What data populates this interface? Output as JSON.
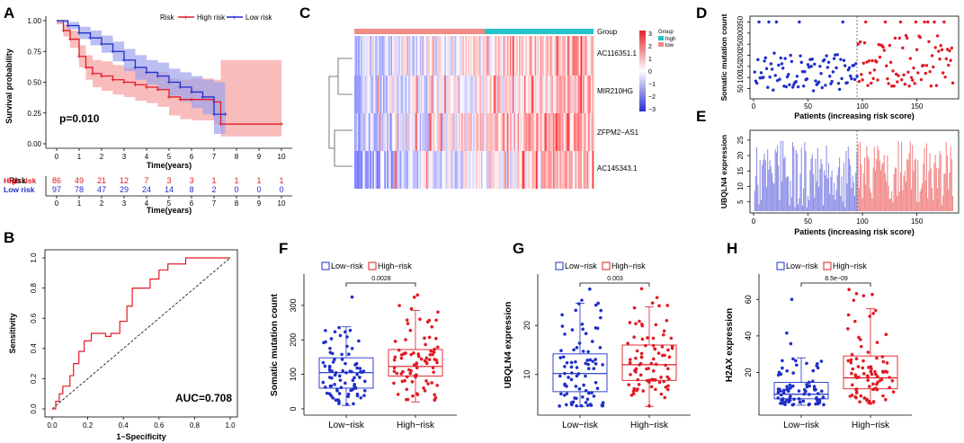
{
  "colors": {
    "high": "#e01b24",
    "low": "#1e2fc9",
    "high_fill": "#f7a6a6",
    "low_fill": "#9ea3ec"
  },
  "panels": {
    "A": "A",
    "B": "B",
    "C": "C",
    "D": "D",
    "E": "E",
    "F": "F",
    "G": "G",
    "H": "H"
  },
  "chart_data": [
    {
      "id": "A",
      "type": "line",
      "title": "",
      "xlabel": "Time(years)",
      "ylabel": "Survival probability",
      "xlim": [
        0,
        10
      ],
      "ylim": [
        0,
        1
      ],
      "xticks": [
        "0",
        "1",
        "2",
        "3",
        "4",
        "5",
        "6",
        "7",
        "8",
        "9",
        "10"
      ],
      "yticks": [
        "0.00",
        "0.25",
        "0.50",
        "0.75",
        "1.00"
      ],
      "legend_title": "Risk",
      "legend": [
        "High risk",
        "Low risk"
      ],
      "pvalue": "p=0.010",
      "series": [
        {
          "name": "High risk",
          "x": [
            0,
            0.3,
            0.6,
            1,
            1.3,
            1.6,
            2,
            2.5,
            3,
            3.5,
            4,
            4.5,
            5,
            5.5,
            6,
            7,
            7.3,
            10
          ],
          "y": [
            1,
            0.92,
            0.85,
            0.71,
            0.62,
            0.57,
            0.55,
            0.52,
            0.5,
            0.48,
            0.46,
            0.44,
            0.38,
            0.36,
            0.36,
            0.34,
            0.16,
            0.16
          ]
        },
        {
          "name": "Low risk",
          "x": [
            0,
            0.5,
            1,
            1.5,
            2,
            2.5,
            3,
            3.5,
            4,
            4.5,
            5,
            5.5,
            6,
            6.5,
            7,
            7.5
          ],
          "y": [
            1,
            0.96,
            0.9,
            0.86,
            0.81,
            0.75,
            0.68,
            0.62,
            0.58,
            0.55,
            0.5,
            0.46,
            0.42,
            0.38,
            0.24,
            0.24
          ]
        }
      ],
      "risk_table": {
        "title": "Risk",
        "xlabel": "Time(years)",
        "rows": [
          {
            "name": "High risk",
            "values": [
              "86",
              "49",
              "21",
              "12",
              "7",
              "3",
              "3",
              "1",
              "1",
              "1",
              "1"
            ]
          },
          {
            "name": "Low risk",
            "values": [
              "97",
              "78",
              "47",
              "29",
              "24",
              "14",
              "8",
              "2",
              "0",
              "0",
              "0"
            ]
          }
        ]
      }
    },
    {
      "id": "B",
      "type": "line",
      "xlabel": "1−Specificity",
      "ylabel": "Sensitivity",
      "xlim": [
        0,
        1
      ],
      "ylim": [
        0,
        1
      ],
      "xticks": [
        "0.0",
        "0.2",
        "0.4",
        "0.6",
        "0.8",
        "1.0"
      ],
      "yticks": [
        "0.0",
        "0.2",
        "0.4",
        "0.6",
        "0.8",
        "1.0"
      ],
      "auc_label": "AUC=0.708",
      "x": [
        0,
        0.02,
        0.02,
        0.04,
        0.04,
        0.06,
        0.06,
        0.1,
        0.1,
        0.12,
        0.12,
        0.15,
        0.15,
        0.18,
        0.18,
        0.22,
        0.22,
        0.3,
        0.3,
        0.33,
        0.33,
        0.38,
        0.38,
        0.42,
        0.42,
        0.45,
        0.45,
        0.55,
        0.55,
        0.6,
        0.6,
        0.65,
        0.65,
        0.75,
        0.75,
        1
      ],
      "y": [
        0,
        0,
        0.05,
        0.05,
        0.1,
        0.1,
        0.15,
        0.15,
        0.22,
        0.22,
        0.3,
        0.3,
        0.38,
        0.38,
        0.45,
        0.45,
        0.5,
        0.5,
        0.48,
        0.48,
        0.5,
        0.5,
        0.58,
        0.58,
        0.68,
        0.68,
        0.8,
        0.8,
        0.86,
        0.86,
        0.92,
        0.92,
        0.96,
        0.96,
        1,
        1
      ]
    },
    {
      "id": "C",
      "type": "heatmap",
      "rows": [
        "AC116351.1",
        "MIR210HG",
        "ZFPM2−AS1",
        "AC145343.1"
      ],
      "group_label": "Group",
      "legend_title": "Group",
      "legend": [
        "high",
        "low"
      ],
      "scale": [
        "3",
        "2",
        "1",
        "0",
        "−1",
        "−2",
        "−3"
      ],
      "n_low": 97,
      "n_high": 86
    },
    {
      "id": "D",
      "type": "scatter",
      "xlabel": "Patients (increasing risk score)",
      "ylabel": "Somatic mutation count",
      "xticks": [
        "0",
        "50",
        "100",
        "150"
      ],
      "yticks": [
        "50",
        "100",
        "150",
        "200",
        "250",
        "300",
        "350"
      ],
      "xlim": [
        0,
        185
      ],
      "ylim": [
        20,
        360
      ],
      "cutoff": 95
    },
    {
      "id": "E",
      "type": "bar",
      "xlabel": "Patients (increasing risk score)",
      "ylabel": "UBQLN4 expression",
      "xticks": [
        "0",
        "50",
        "100",
        "150"
      ],
      "yticks": [
        "5",
        "10",
        "15",
        "20",
        "25"
      ],
      "xlim": [
        0,
        185
      ],
      "ylim": [
        2,
        27
      ],
      "cutoff": 95
    },
    {
      "id": "F",
      "type": "box",
      "ylabel": "Somatic mutation count",
      "categories": [
        "Low−risk",
        "High−risk"
      ],
      "legend": [
        "Low−risk",
        "High−risk"
      ],
      "pvalue": "0.0028",
      "yticks": [
        "0",
        "100",
        "200",
        "300"
      ],
      "ylim": [
        0,
        370
      ],
      "boxes": [
        {
          "q1": 60,
          "median": 105,
          "q3": 148,
          "lo": 10,
          "hi": 238
        },
        {
          "q1": 95,
          "median": 123,
          "q3": 172,
          "lo": 20,
          "hi": 285
        }
      ]
    },
    {
      "id": "G",
      "type": "box",
      "ylabel": "UBQLN4 expression",
      "categories": [
        "Low−risk",
        "High−risk"
      ],
      "legend": [
        "Low−risk",
        "High−risk"
      ],
      "pvalue": "0.003",
      "yticks": [
        "10",
        "20"
      ],
      "ylim": [
        3,
        29
      ],
      "boxes": [
        {
          "q1": 6.5,
          "median": 10.2,
          "q3": 14.2,
          "lo": 3.5,
          "hi": 24.5
        },
        {
          "q1": 8.8,
          "median": 12,
          "q3": 16,
          "lo": 3.5,
          "hi": 23.8
        }
      ]
    },
    {
      "id": "H",
      "type": "box",
      "ylabel": "H2AX expression",
      "categories": [
        "Low−risk",
        "High−risk"
      ],
      "legend": [
        "Low−risk",
        "High−risk"
      ],
      "pvalue": "8.5e−09",
      "yticks": [
        "20",
        "40",
        "60"
      ],
      "ylim": [
        0,
        70
      ],
      "boxes": [
        {
          "q1": 5.5,
          "median": 8,
          "q3": 14.5,
          "lo": 2,
          "hi": 28
        },
        {
          "q1": 11,
          "median": 17,
          "q3": 29,
          "lo": 3,
          "hi": 55
        }
      ]
    }
  ]
}
